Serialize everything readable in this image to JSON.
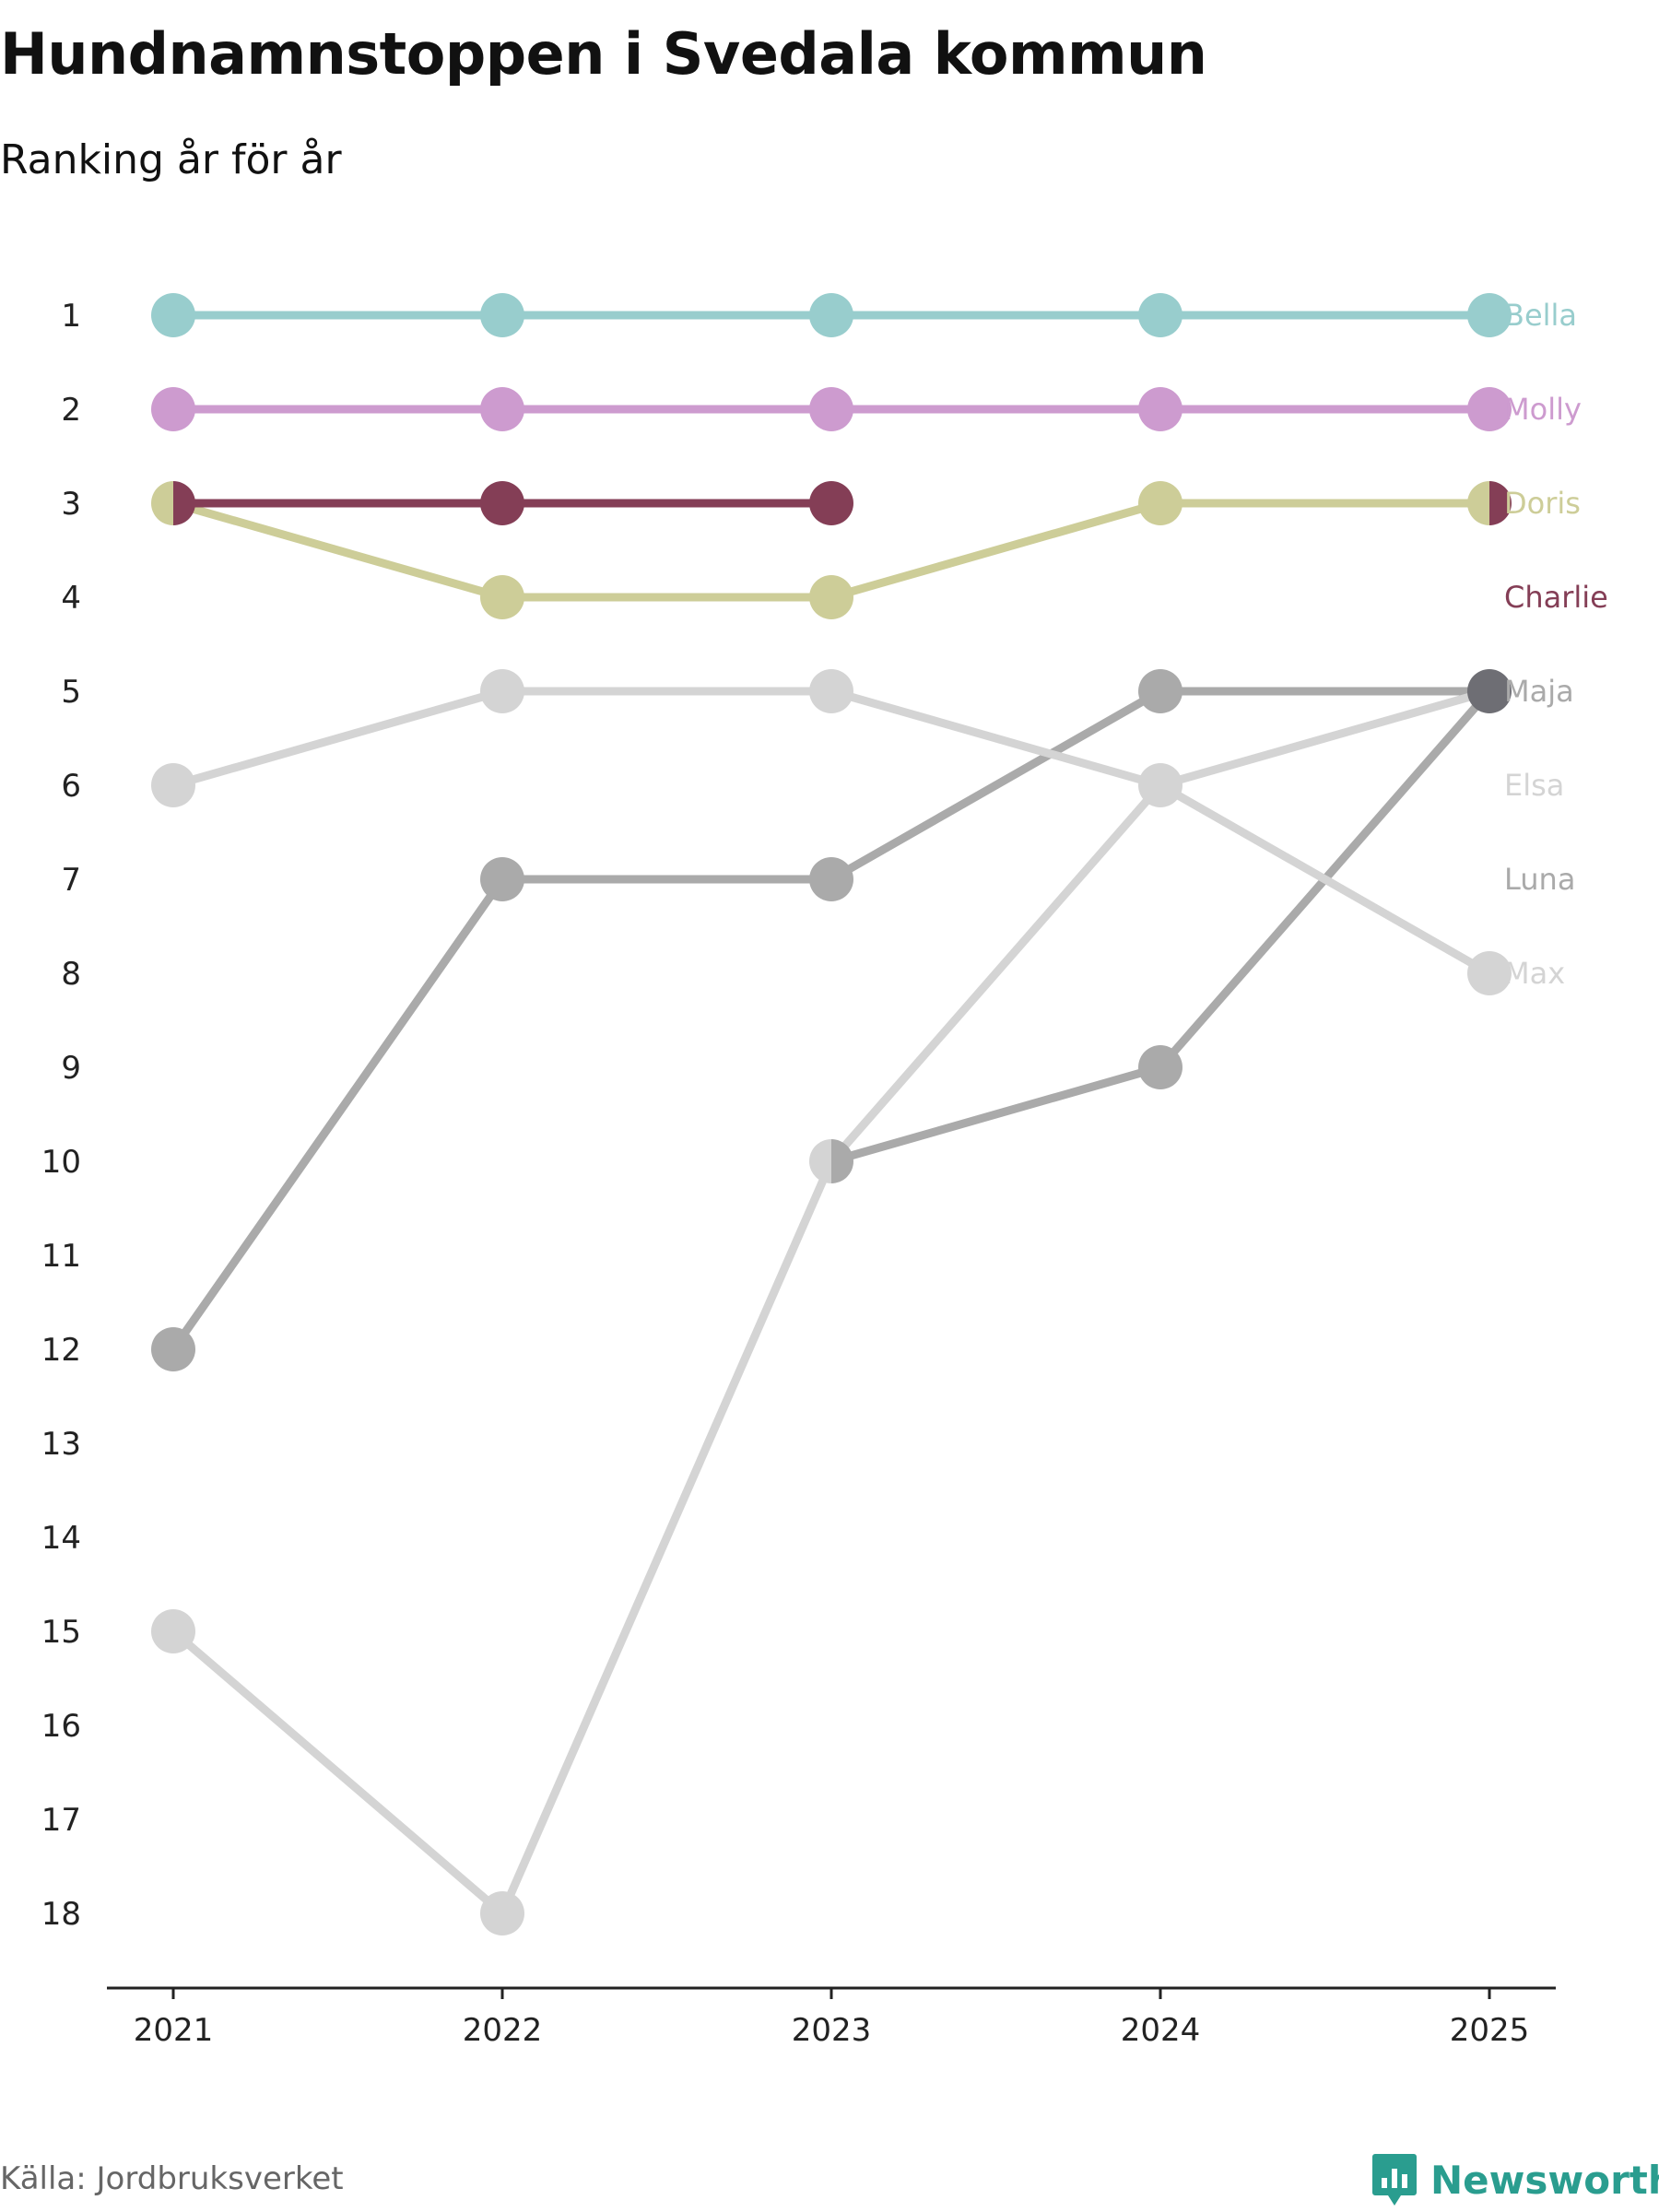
{
  "chart_data": {
    "type": "line",
    "title": "Hundnamnstoppen i Svedala kommun",
    "subtitle": "Ranking år för år",
    "xlabel": "",
    "ylabel": "",
    "x": [
      "2021",
      "2022",
      "2023",
      "2024",
      "2025"
    ],
    "ylim": [
      1,
      18
    ],
    "y_inverted": true,
    "y_ticks": [
      1,
      2,
      3,
      4,
      5,
      6,
      7,
      8,
      9,
      10,
      11,
      12,
      13,
      14,
      15,
      16,
      17,
      18
    ],
    "legend": "direct labels at right",
    "series": [
      {
        "name": "Bella",
        "color": "#98cdcd",
        "values": [
          1,
          1,
          1,
          1,
          1
        ]
      },
      {
        "name": "Molly",
        "color": "#cd9bcf",
        "values": [
          2,
          2,
          2,
          2,
          2
        ]
      },
      {
        "name": "Doris",
        "color": "#cdcd98",
        "values": [
          3,
          4,
          4,
          3,
          3
        ]
      },
      {
        "name": "Charlie",
        "color": "#843e56",
        "values": [
          3,
          3,
          3,
          null,
          3
        ]
      },
      {
        "name": "Maja",
        "color": "#aaaaaa",
        "values": [
          12,
          7,
          7,
          5,
          5
        ]
      },
      {
        "name": "Elsa",
        "color": "#d4d4d4",
        "values": [
          15,
          18,
          10,
          6,
          5
        ]
      },
      {
        "name": "Luna",
        "color": "#aaaaaa",
        "values": [
          null,
          null,
          10,
          9,
          5
        ]
      },
      {
        "name": "Max",
        "color": "#d4d4d4",
        "values": [
          6,
          5,
          5,
          6,
          8
        ]
      }
    ],
    "overlap_color": "#6e6e74"
  },
  "footer": {
    "source": "Källa: Jordbruksverket",
    "brand": "Newsworthy"
  },
  "colors": {
    "brand": "#2a9d8f",
    "axis": "#222222"
  }
}
